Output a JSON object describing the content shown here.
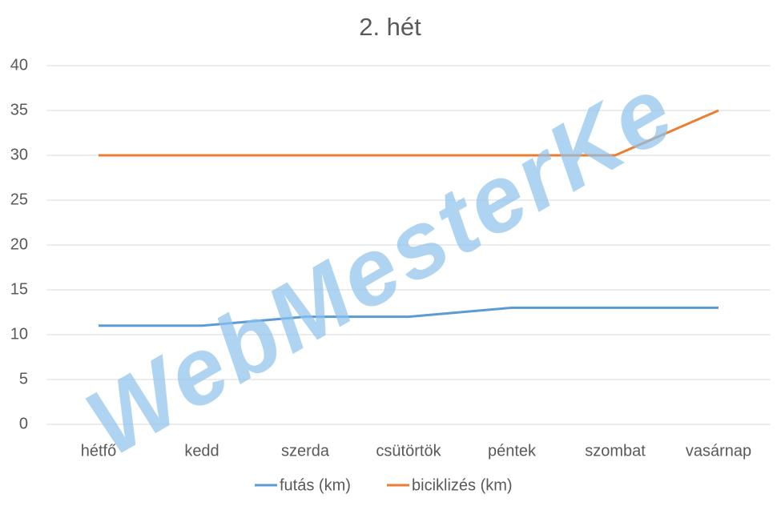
{
  "chart_data": {
    "type": "line",
    "title": "2. hét",
    "categories": [
      "hétfő",
      "kedd",
      "szerda",
      "csütörtök",
      "péntek",
      "szombat",
      "vasárnap"
    ],
    "series": [
      {
        "name": "futás (km)",
        "color": "#5b9bd5",
        "values": [
          11,
          11,
          12,
          12,
          13,
          13,
          13
        ]
      },
      {
        "name": "biciklizés (km)",
        "color": "#ed7d31",
        "values": [
          30,
          30,
          30,
          30,
          30,
          30,
          35
        ]
      }
    ],
    "ylim": [
      0,
      40
    ],
    "yticks": [
      0,
      5,
      10,
      15,
      20,
      25,
      30,
      35,
      40
    ],
    "grid": true,
    "legend": "bottom",
    "watermark": "WebMesterKe"
  }
}
